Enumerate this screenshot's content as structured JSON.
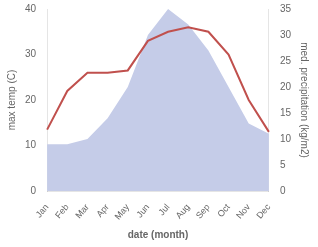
{
  "chart_data": {
    "type": "line",
    "xlabel": "date (month)",
    "ylabel": "max temp (C)",
    "y2label": "med. precipitation (kg/m2)",
    "categories": [
      "Jan",
      "Feb",
      "Mar",
      "Apr",
      "May",
      "Jun",
      "Jul",
      "Aug",
      "Sep",
      "Oct",
      "Nov",
      "Dec"
    ],
    "series": [
      {
        "type": "line",
        "color": "#c0504d",
        "values": [
          13.5,
          22,
          26,
          26,
          26.5,
          33,
          35,
          36,
          35,
          30,
          20,
          13
        ]
      },
      {
        "type": "area",
        "color": "#c5cce8",
        "axis": "y2",
        "values": [
          9,
          9,
          10,
          14,
          20,
          30,
          35,
          32,
          27,
          20,
          13,
          11
        ]
      }
    ],
    "ylim": [
      0,
      40
    ],
    "yticks": [
      0,
      10,
      20,
      30,
      40
    ],
    "y2lim": [
      0,
      35
    ],
    "y2ticks": [
      0,
      5,
      10,
      15,
      20,
      25,
      30,
      35
    ],
    "grid": false
  }
}
